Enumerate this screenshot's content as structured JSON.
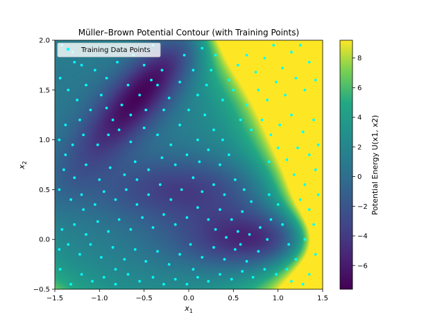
{
  "chart_data": {
    "type": "heatmap",
    "title": "Müller–Brown Potential Contour (with Training Points)",
    "xlabel_base": "x",
    "xlabel_sub": "1",
    "ylabel_base": "x",
    "ylabel_sub": "2",
    "xlim": [
      -1.5,
      1.5
    ],
    "ylim": [
      -0.5,
      2.0
    ],
    "xticks": [
      -1.5,
      -1.0,
      -0.5,
      0.0,
      0.5,
      1.0,
      1.5
    ],
    "xtick_labels": [
      "−1.5",
      "−1.0",
      "−0.5",
      "0.0",
      "0.5",
      "1.0",
      "1.5"
    ],
    "yticks": [
      -0.5,
      0.0,
      0.5,
      1.0,
      1.5,
      2.0
    ],
    "ytick_labels": [
      "−0.5",
      "0.0",
      "0.5",
      "1.0",
      "1.5",
      "2.0"
    ],
    "colorbar": {
      "label": "Potential Energy U(x1, x2)",
      "range": [
        -7.6,
        9.2
      ],
      "ticks": [
        -6,
        -4,
        -2,
        0,
        2,
        4,
        6,
        8
      ],
      "tick_labels": [
        "−6",
        "−4",
        "−2",
        "0",
        "2",
        "4",
        "6",
        "8"
      ],
      "colormap": "viridis"
    },
    "legend": {
      "label": "Training Data Points",
      "position": "upper-left"
    },
    "point_color": "#00ffff",
    "series": [
      {
        "name": "Training Data Points",
        "points": [
          [
            -1.42,
            1.95
          ],
          [
            -1.3,
            1.88
          ],
          [
            -1.2,
            1.75
          ],
          [
            -1.44,
            1.62
          ],
          [
            -1.35,
            1.5
          ],
          [
            -1.25,
            1.4
          ],
          [
            -1.15,
            1.55
          ],
          [
            -1.05,
            1.7
          ],
          [
            -0.92,
            1.62
          ],
          [
            -0.8,
            1.78
          ],
          [
            -0.62,
            1.85
          ],
          [
            -0.45,
            1.9
          ],
          [
            -0.3,
            1.7
          ],
          [
            -0.35,
            1.55
          ],
          [
            -0.22,
            1.42
          ],
          [
            -0.28,
            1.3
          ],
          [
            -0.42,
            1.6
          ],
          [
            -0.5,
            1.75
          ],
          [
            -0.55,
            1.45
          ],
          [
            -0.68,
            1.55
          ],
          [
            -0.75,
            1.35
          ],
          [
            -0.85,
            1.2
          ],
          [
            -0.98,
            1.45
          ],
          [
            -1.1,
            1.3
          ],
          [
            -1.22,
            1.2
          ],
          [
            -1.38,
            1.15
          ],
          [
            -1.45,
            1.0
          ],
          [
            -1.3,
            0.95
          ],
          [
            -1.18,
            1.05
          ],
          [
            -1.02,
            0.95
          ],
          [
            -0.9,
            1.05
          ],
          [
            -0.78,
            1.1
          ],
          [
            -0.65,
            0.98
          ],
          [
            -0.5,
            1.12
          ],
          [
            -0.35,
            1.05
          ],
          [
            -0.2,
            0.95
          ],
          [
            -0.1,
            1.15
          ],
          [
            0.0,
            1.3
          ],
          [
            0.1,
            1.45
          ],
          [
            0.2,
            1.55
          ],
          [
            0.05,
            1.7
          ],
          [
            -0.05,
            1.85
          ],
          [
            0.15,
            1.92
          ],
          [
            0.3,
            1.85
          ],
          [
            0.25,
            1.7
          ],
          [
            0.18,
            1.25
          ],
          [
            0.28,
            1.1
          ],
          [
            0.38,
            1.0
          ],
          [
            0.45,
            0.85
          ],
          [
            0.35,
            0.75
          ],
          [
            0.22,
            0.9
          ],
          [
            0.1,
            1.0
          ],
          [
            -0.02,
            0.85
          ],
          [
            -0.15,
            0.75
          ],
          [
            -0.3,
            0.82
          ],
          [
            -0.45,
            0.7
          ],
          [
            -0.6,
            0.78
          ],
          [
            -0.72,
            0.65
          ],
          [
            -0.88,
            0.72
          ],
          [
            -1.0,
            0.6
          ],
          [
            -1.15,
            0.75
          ],
          [
            -1.28,
            0.62
          ],
          [
            -1.4,
            0.7
          ],
          [
            -1.45,
            0.5
          ],
          [
            -1.32,
            0.4
          ],
          [
            -1.2,
            0.45
          ],
          [
            -1.05,
            0.35
          ],
          [
            -0.95,
            0.48
          ],
          [
            -0.82,
            0.4
          ],
          [
            -0.7,
            0.5
          ],
          [
            -0.58,
            0.35
          ],
          [
            -0.45,
            0.45
          ],
          [
            -0.32,
            0.55
          ],
          [
            -0.2,
            0.4
          ],
          [
            -0.08,
            0.5
          ],
          [
            0.05,
            0.62
          ],
          [
            0.15,
            0.48
          ],
          [
            0.28,
            0.55
          ],
          [
            0.4,
            0.45
          ],
          [
            0.52,
            0.6
          ],
          [
            0.62,
            0.5
          ],
          [
            0.7,
            0.38
          ],
          [
            0.6,
            0.28
          ],
          [
            0.48,
            0.2
          ],
          [
            0.35,
            0.3
          ],
          [
            0.22,
            0.2
          ],
          [
            0.1,
            0.32
          ],
          [
            -0.02,
            0.22
          ],
          [
            -0.15,
            0.15
          ],
          [
            -0.28,
            0.25
          ],
          [
            -0.4,
            0.12
          ],
          [
            -0.52,
            0.22
          ],
          [
            -0.65,
            0.1
          ],
          [
            -0.78,
            0.2
          ],
          [
            -0.9,
            0.08
          ],
          [
            -1.02,
            0.18
          ],
          [
            -1.15,
            0.05
          ],
          [
            -1.28,
            0.15
          ],
          [
            -1.42,
            0.1
          ],
          [
            -1.45,
            -0.1
          ],
          [
            -1.35,
            -0.05
          ],
          [
            -1.22,
            -0.15
          ],
          [
            -1.1,
            -0.05
          ],
          [
            -0.98,
            -0.18
          ],
          [
            -0.85,
            -0.08
          ],
          [
            -0.72,
            -0.2
          ],
          [
            -0.6,
            -0.1
          ],
          [
            -0.48,
            -0.22
          ],
          [
            -0.35,
            -0.12
          ],
          [
            -0.22,
            -0.25
          ],
          [
            -0.1,
            -0.15
          ],
          [
            0.02,
            -0.05
          ],
          [
            0.15,
            -0.18
          ],
          [
            0.28,
            -0.08
          ],
          [
            0.4,
            -0.2
          ],
          [
            0.52,
            -0.1
          ],
          [
            0.65,
            -0.22
          ],
          [
            0.78,
            -0.12
          ],
          [
            0.88,
            0.0
          ],
          [
            0.8,
            0.12
          ],
          [
            0.68,
            0.05
          ],
          [
            0.55,
            0.08
          ],
          [
            0.42,
            0.02
          ],
          [
            0.3,
            0.1
          ],
          [
            0.92,
            0.2
          ],
          [
            1.0,
            0.35
          ],
          [
            1.05,
            0.15
          ],
          [
            1.12,
            -0.05
          ],
          [
            1.2,
            -0.2
          ],
          [
            1.1,
            -0.3
          ],
          [
            0.98,
            -0.35
          ],
          [
            0.85,
            -0.3
          ],
          [
            0.72,
            -0.38
          ],
          [
            0.6,
            -0.32
          ],
          [
            0.48,
            -0.4
          ],
          [
            0.35,
            -0.35
          ],
          [
            0.22,
            -0.42
          ],
          [
            0.1,
            -0.38
          ],
          [
            -0.02,
            -0.45
          ],
          [
            -0.15,
            -0.4
          ],
          [
            -0.28,
            -0.45
          ],
          [
            -0.4,
            -0.38
          ],
          [
            -0.55,
            -0.42
          ],
          [
            -0.68,
            -0.35
          ],
          [
            -0.82,
            -0.45
          ],
          [
            -0.95,
            -0.38
          ],
          [
            -1.08,
            -0.42
          ],
          [
            -1.2,
            -0.35
          ],
          [
            -1.32,
            -0.45
          ],
          [
            -1.44,
            -0.3
          ],
          [
            0.45,
            1.6
          ],
          [
            0.55,
            1.75
          ],
          [
            0.65,
            1.85
          ],
          [
            0.75,
            1.68
          ],
          [
            0.85,
            1.82
          ],
          [
            0.95,
            1.95
          ],
          [
            1.05,
            1.72
          ],
          [
            1.15,
            1.88
          ],
          [
            1.25,
            1.95
          ],
          [
            1.35,
            1.78
          ],
          [
            1.42,
            1.6
          ],
          [
            1.3,
            1.5
          ],
          [
            1.2,
            1.62
          ],
          [
            1.08,
            1.45
          ],
          [
            0.98,
            1.58
          ],
          [
            0.88,
            1.4
          ],
          [
            0.78,
            1.5
          ],
          [
            0.65,
            1.35
          ],
          [
            0.58,
            1.2
          ],
          [
            0.7,
            1.1
          ],
          [
            0.82,
            1.2
          ],
          [
            0.92,
            1.05
          ],
          [
            1.02,
            1.15
          ],
          [
            1.15,
            1.25
          ],
          [
            1.28,
            1.08
          ],
          [
            1.4,
            1.2
          ],
          [
            1.45,
            0.95
          ],
          [
            1.35,
            0.85
          ],
          [
            1.22,
            0.92
          ],
          [
            1.1,
            0.8
          ],
          [
            1.0,
            0.92
          ],
          [
            0.9,
            0.78
          ],
          [
            1.18,
            0.65
          ],
          [
            1.3,
            0.55
          ],
          [
            1.42,
            0.7
          ],
          [
            1.45,
            0.45
          ],
          [
            1.35,
            0.3
          ],
          [
            1.25,
            0.4
          ],
          [
            1.4,
            0.15
          ],
          [
            1.3,
            0.0
          ],
          [
            1.42,
            -0.15
          ],
          [
            1.35,
            -0.35
          ],
          [
            1.28,
            -0.45
          ],
          [
            1.15,
            -0.42
          ],
          [
            -0.65,
            1.25
          ],
          [
            -0.48,
            1.3
          ],
          [
            -0.92,
            1.32
          ],
          [
            -1.28,
            1.78
          ],
          [
            -0.1,
            1.58
          ],
          [
            0.38,
            1.4
          ],
          [
            -1.38,
            0.85
          ],
          [
            -0.58,
            0.6
          ],
          [
            0.12,
            0.78
          ],
          [
            -0.82,
            -0.3
          ],
          [
            0.58,
            -0.05
          ],
          [
            0.9,
            0.45
          ],
          [
            -1.18,
            0.3
          ],
          [
            0.05,
            -0.3
          ],
          [
            -0.4,
            1.95
          ],
          [
            0.5,
            1.5
          ]
        ]
      }
    ]
  }
}
